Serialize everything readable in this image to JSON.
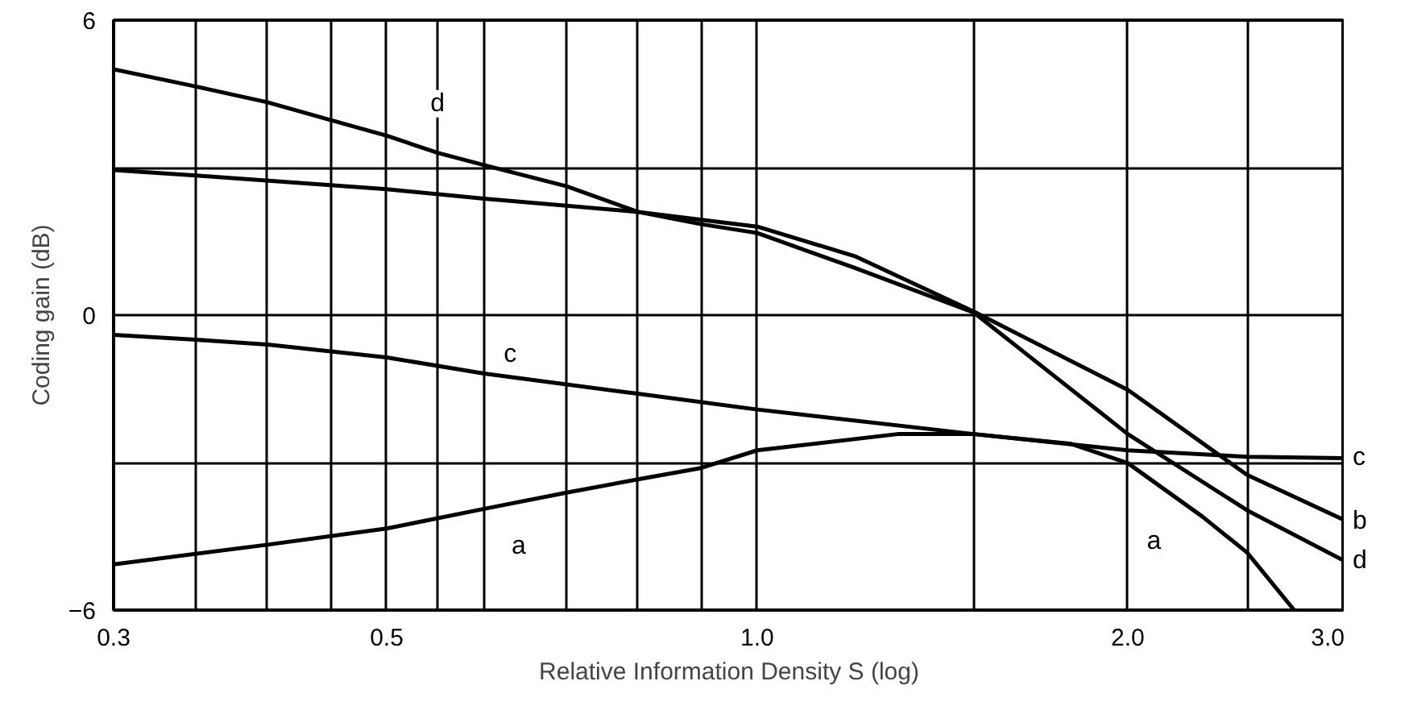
{
  "chart_data": {
    "type": "line",
    "xlabel": "Relative Information Density S (log)",
    "ylabel": "Coding gain (dB)",
    "log": "x",
    "grid": true,
    "marker": "none",
    "line_style": "solid",
    "xlim": [
      0.3,
      3.0
    ],
    "ylim": [
      -6,
      6
    ],
    "xticks": [
      0.3,
      {
        "value": 0.35,
        "label": null
      },
      {
        "value": 0.4,
        "label": null
      },
      {
        "value": 0.45,
        "label": null
      },
      {
        "value": 0.5,
        "label": "0.5"
      },
      {
        "value": 0.55,
        "label": null
      },
      {
        "value": 0.6,
        "label": null
      },
      {
        "value": 0.7,
        "label": null
      },
      {
        "value": 0.8,
        "label": null
      },
      {
        "value": 0.9,
        "label": null
      },
      {
        "value": 1.0,
        "label": "1.0"
      },
      {
        "value": 1.5,
        "label": null
      },
      {
        "value": 2.0,
        "label": "2.0"
      },
      {
        "value": 2.5,
        "label": null
      },
      {
        "value": 3.0,
        "label": "3.0"
      }
    ],
    "yticks": [
      {
        "value": -6,
        "label": "−6"
      },
      {
        "value": -3,
        "label": null
      },
      0,
      {
        "value": 3,
        "label": null
      },
      6
    ],
    "series": [
      {
        "color": "#000000",
        "x": [
          0.3,
          0.4,
          0.5,
          0.6,
          0.7,
          0.8,
          0.9,
          1.0,
          1.3,
          1.5,
          1.8,
          2.0,
          2.3,
          2.5,
          2.73
        ],
        "values": [
          -5.07,
          -4.67,
          -4.34,
          -3.94,
          -3.61,
          -3.34,
          -3.11,
          -2.75,
          -2.42,
          -2.42,
          -2.62,
          -3.01,
          -4.1,
          -4.83,
          -6.0
        ]
      },
      {
        "color": "#000000",
        "x": [
          0.3,
          0.35,
          0.5,
          0.6,
          0.8,
          1.0,
          1.2,
          1.5,
          2.0,
          2.5,
          3.0
        ],
        "values": [
          2.95,
          2.84,
          2.56,
          2.37,
          2.1,
          1.8,
          1.2,
          0.07,
          -1.52,
          -3.25,
          -4.17
        ]
      },
      {
        "color": "#000000",
        "x": [
          0.3,
          0.35,
          0.4,
          0.5,
          0.6,
          0.8,
          1.0,
          1.5,
          2.0,
          2.5,
          3.0
        ],
        "values": [
          -0.4,
          -0.5,
          -0.6,
          -0.86,
          -1.19,
          -1.6,
          -1.92,
          -2.42,
          -2.75,
          -2.88,
          -2.91
        ]
      },
      {
        "color": "#000000",
        "x": [
          0.3,
          0.35,
          0.4,
          0.45,
          0.5,
          0.55,
          0.6,
          0.7,
          0.8,
          0.9,
          1.0,
          1.2,
          1.5,
          2.0,
          2.5,
          3.0
        ],
        "values": [
          5.0,
          4.65,
          4.33,
          3.97,
          3.65,
          3.3,
          3.05,
          2.62,
          2.1,
          1.85,
          1.67,
          0.96,
          0.05,
          -2.42,
          -3.97,
          -5.0
        ]
      }
    ],
    "annotations": [
      {
        "text": "d",
        "x": 0.55,
        "y": 4.3
      },
      {
        "text": "c",
        "x": 0.63,
        "y": -0.8
      },
      {
        "text": "a",
        "x": 0.64,
        "y": -4.7
      },
      {
        "text": "a",
        "x": 2.1,
        "y": -4.6
      },
      {
        "text": "c",
        "x": 3.0,
        "y": -2.9
      },
      {
        "text": "b",
        "x": 3.0,
        "y": -4.2
      },
      {
        "text": "d",
        "x": 3.0,
        "y": -5.0
      }
    ]
  }
}
